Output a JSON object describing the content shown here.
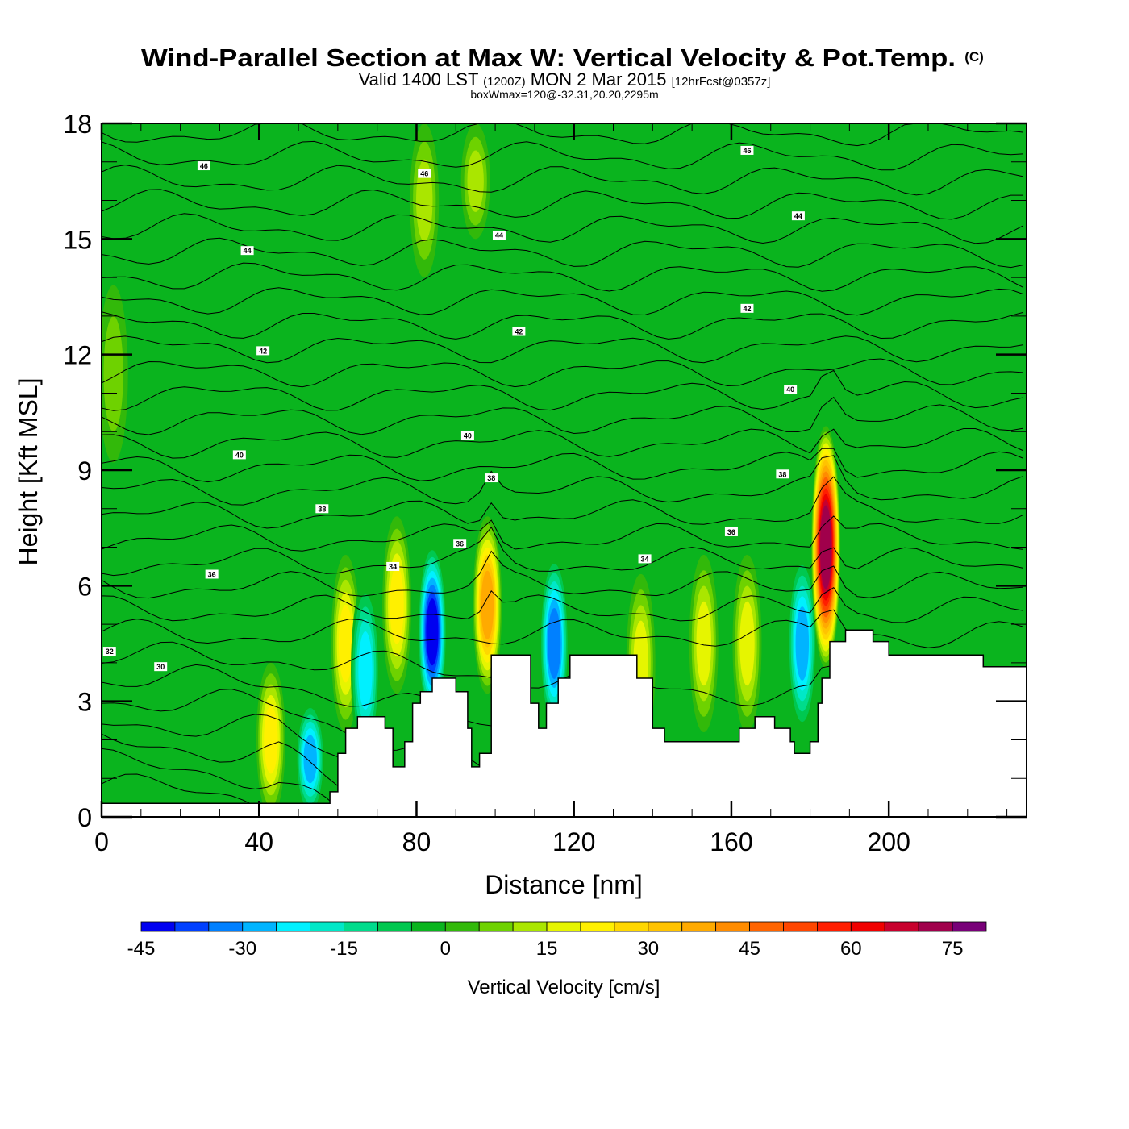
{
  "header": {
    "title": "Wind-Parallel Section at Max W: Vertical Velocity & Pot.Temp.",
    "copyright_mark": "(C)",
    "valid_prefix": "Valid 1400 LST",
    "valid_utc": "(1200Z)",
    "valid_date": "MON 2 Mar 2015",
    "forecast": "[12hrFcst@0357z]",
    "box_info": "boxWmax=120@-32.31,20.20,2295m"
  },
  "chart_data": {
    "type": "heatmap",
    "title": "Wind-Parallel Section at Max W: Vertical Velocity & Pot.Temp.",
    "xlabel": "Distance [nm]",
    "ylabel": "Height [Kft MSL]",
    "xlim": [
      0,
      235
    ],
    "ylim": [
      0,
      18
    ],
    "xticks": [
      0,
      40,
      80,
      120,
      160,
      200
    ],
    "yticks": [
      0,
      3,
      6,
      9,
      12,
      15,
      18
    ],
    "grid": false,
    "colorbar": {
      "title": "Vertical Velocity [cm/s]",
      "placement": "bottom",
      "boundaries": [
        -45,
        80
      ],
      "step": 5,
      "tick_labels": [
        "-45",
        "-30",
        "-15",
        "0",
        "15",
        "30",
        "45",
        "60",
        "75"
      ],
      "tick_values": [
        -45,
        -30,
        -15,
        0,
        15,
        30,
        45,
        60,
        75
      ],
      "colors": [
        "#0000f0",
        "#0040ff",
        "#0080ff",
        "#00b4ff",
        "#00f0ff",
        "#00e8c8",
        "#00dc8c",
        "#00c850",
        "#0ab41e",
        "#32b90a",
        "#6ed200",
        "#aae600",
        "#e6f500",
        "#fff000",
        "#ffd700",
        "#ffc300",
        "#ffaa00",
        "#ff8c00",
        "#ff6400",
        "#ff4600",
        "#ff1e00",
        "#f00000",
        "#c8002d",
        "#a0004b",
        "#780078"
      ]
    },
    "terrain_profile_kft": {
      "x_nm": [
        0,
        40,
        48,
        54,
        58,
        60,
        62,
        65,
        70,
        72,
        74,
        77,
        79,
        81,
        84,
        89,
        90,
        93,
        94,
        96,
        99,
        105,
        109,
        111,
        113,
        116,
        119,
        125,
        134,
        136,
        140,
        143,
        144,
        160,
        162,
        166,
        171,
        175,
        176,
        180,
        182,
        183,
        185,
        189,
        196,
        200,
        222,
        224,
        235
      ],
      "z_kft": [
        0.35,
        0.35,
        0.35,
        0.35,
        0.65,
        1.65,
        2.3,
        2.6,
        2.6,
        2.3,
        1.3,
        1.95,
        2.95,
        3.25,
        3.6,
        3.6,
        3.25,
        2.3,
        1.3,
        1.65,
        4.2,
        4.2,
        2.95,
        2.3,
        2.95,
        3.6,
        4.2,
        4.2,
        4.2,
        3.6,
        2.3,
        1.95,
        1.95,
        1.95,
        2.3,
        2.6,
        2.3,
        1.95,
        1.65,
        1.95,
        2.95,
        3.6,
        4.55,
        4.85,
        4.55,
        4.2,
        4.2,
        3.9,
        3.9
      ]
    },
    "velocity_features": [
      {
        "x_nm": 3,
        "z_kft": 11.5,
        "w": 10
      },
      {
        "x_nm": 43,
        "z_kft": 2.0,
        "w": 25
      },
      {
        "x_nm": 53,
        "z_kft": 1.5,
        "w": -30
      },
      {
        "x_nm": 62,
        "z_kft": 4.5,
        "w": 25
      },
      {
        "x_nm": 67,
        "z_kft": 3.8,
        "w": -25
      },
      {
        "x_nm": 75,
        "z_kft": 5.5,
        "w": 25
      },
      {
        "x_nm": 84,
        "z_kft": 4.8,
        "w": -45
      },
      {
        "x_nm": 98,
        "z_kft": 5.5,
        "w": 40
      },
      {
        "x_nm": 115,
        "z_kft": 4.5,
        "w": -35
      },
      {
        "x_nm": 137,
        "z_kft": 4.0,
        "w": 20
      },
      {
        "x_nm": 153,
        "z_kft": 4.5,
        "w": 22
      },
      {
        "x_nm": 164,
        "z_kft": 4.5,
        "w": 20
      },
      {
        "x_nm": 178,
        "z_kft": 4.5,
        "w": -30
      },
      {
        "x_nm": 184,
        "z_kft": 7.0,
        "w": 75
      },
      {
        "x_nm": 82,
        "z_kft": 16.0,
        "w": 15
      },
      {
        "x_nm": 95,
        "z_kft": 16.5,
        "w": 15
      }
    ],
    "theta_contour_labels": [
      {
        "value": "46",
        "x_nm": 26,
        "z_kft": 16.9
      },
      {
        "value": "46",
        "x_nm": 82,
        "z_kft": 16.7
      },
      {
        "value": "46",
        "x_nm": 164,
        "z_kft": 17.3
      },
      {
        "value": "44",
        "x_nm": 37,
        "z_kft": 14.7
      },
      {
        "value": "44",
        "x_nm": 101,
        "z_kft": 15.1
      },
      {
        "value": "44",
        "x_nm": 177,
        "z_kft": 15.6
      },
      {
        "value": "42",
        "x_nm": 41,
        "z_kft": 12.1
      },
      {
        "value": "42",
        "x_nm": 106,
        "z_kft": 12.6
      },
      {
        "value": "42",
        "x_nm": 164,
        "z_kft": 13.2
      },
      {
        "value": "40",
        "x_nm": 35,
        "z_kft": 9.4
      },
      {
        "value": "40",
        "x_nm": 93,
        "z_kft": 9.9
      },
      {
        "value": "40",
        "x_nm": 175,
        "z_kft": 11.1
      },
      {
        "value": "38",
        "x_nm": 56,
        "z_kft": 8.0
      },
      {
        "value": "38",
        "x_nm": 99,
        "z_kft": 8.8
      },
      {
        "value": "38",
        "x_nm": 173,
        "z_kft": 8.9
      },
      {
        "value": "36",
        "x_nm": 28,
        "z_kft": 6.3
      },
      {
        "value": "36",
        "x_nm": 91,
        "z_kft": 7.1
      },
      {
        "value": "36",
        "x_nm": 160,
        "z_kft": 7.4
      },
      {
        "value": "34",
        "x_nm": 74,
        "z_kft": 6.5
      },
      {
        "value": "34",
        "x_nm": 138,
        "z_kft": 6.7
      },
      {
        "value": "32",
        "x_nm": 2,
        "z_kft": 4.3
      },
      {
        "value": "30",
        "x_nm": 15,
        "z_kft": 3.9
      }
    ]
  }
}
